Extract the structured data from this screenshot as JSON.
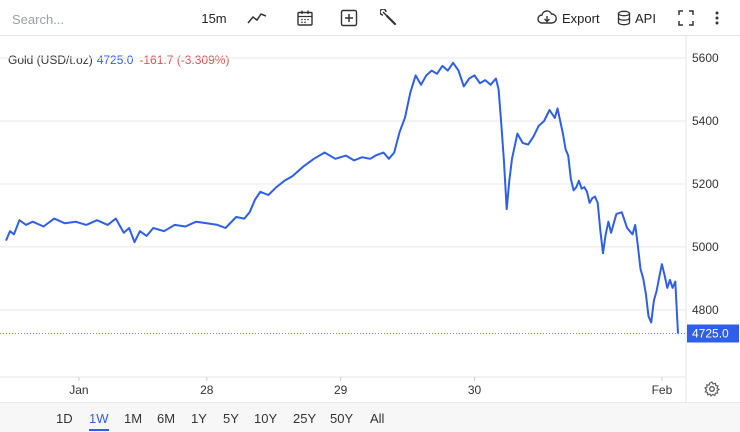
{
  "toolbar": {
    "search_placeholder": "Search...",
    "interval": "15m",
    "export_label": "Export",
    "api_label": "API",
    "icons": [
      "line-chart-icon",
      "calendar-icon",
      "add-indicator-icon",
      "wrench-icon",
      "cloud-download-icon",
      "database-icon",
      "fullscreen-icon",
      "more-vertical-icon"
    ]
  },
  "legend": {
    "symbol": "Gold (USD/t.oz)",
    "price": "4725.0",
    "change": "-161.7 (-3.309%)"
  },
  "colors": {
    "line": "#2f5fe8",
    "negative": "#e05252",
    "grid": "#e8e8e8",
    "price_tag": "#2f5fe8"
  },
  "chart_data": {
    "type": "line",
    "x_tick_labels": [
      "Jan",
      "28",
      "29",
      "30",
      "Feb"
    ],
    "y_tick_labels": [
      "4800",
      "5000",
      "5200",
      "5400",
      "5600"
    ],
    "ylim": [
      4590,
      5670
    ],
    "x_range_days": [
      0,
      4.4
    ],
    "x_ticks_days": [
      0.5,
      1.5,
      2.5,
      3.5,
      4.5
    ],
    "last_value_label": "4725.0",
    "last_value": 4725,
    "series": [
      {
        "values": [
          [
            0.0,
            5020
          ],
          [
            0.03,
            5050
          ],
          [
            0.06,
            5040
          ],
          [
            0.1,
            5085
          ],
          [
            0.15,
            5070
          ],
          [
            0.2,
            5080
          ],
          [
            0.28,
            5065
          ],
          [
            0.36,
            5090
          ],
          [
            0.44,
            5075
          ],
          [
            0.52,
            5080
          ],
          [
            0.6,
            5070
          ],
          [
            0.68,
            5085
          ],
          [
            0.76,
            5070
          ],
          [
            0.82,
            5090
          ],
          [
            0.88,
            5045
          ],
          [
            0.92,
            5060
          ],
          [
            0.96,
            5015
          ],
          [
            1.0,
            5050
          ],
          [
            1.05,
            5035
          ],
          [
            1.1,
            5060
          ],
          [
            1.18,
            5050
          ],
          [
            1.26,
            5070
          ],
          [
            1.34,
            5065
          ],
          [
            1.42,
            5080
          ],
          [
            1.5,
            5075
          ],
          [
            1.58,
            5070
          ],
          [
            1.64,
            5060
          ],
          [
            1.72,
            5095
          ],
          [
            1.78,
            5090
          ],
          [
            1.82,
            5110
          ],
          [
            1.86,
            5150
          ],
          [
            1.9,
            5175
          ],
          [
            1.96,
            5165
          ],
          [
            2.02,
            5190
          ],
          [
            2.08,
            5210
          ],
          [
            2.14,
            5225
          ],
          [
            2.22,
            5255
          ],
          [
            2.3,
            5280
          ],
          [
            2.38,
            5300
          ],
          [
            2.46,
            5280
          ],
          [
            2.54,
            5290
          ],
          [
            2.6,
            5275
          ],
          [
            2.66,
            5285
          ],
          [
            2.72,
            5280
          ],
          [
            2.76,
            5290
          ],
          [
            2.82,
            5300
          ],
          [
            2.86,
            5280
          ],
          [
            2.9,
            5300
          ],
          [
            2.94,
            5365
          ],
          [
            2.98,
            5410
          ],
          [
            3.02,
            5490
          ],
          [
            3.06,
            5545
          ],
          [
            3.1,
            5515
          ],
          [
            3.14,
            5545
          ],
          [
            3.18,
            5560
          ],
          [
            3.22,
            5550
          ],
          [
            3.26,
            5575
          ],
          [
            3.3,
            5560
          ],
          [
            3.34,
            5585
          ],
          [
            3.38,
            5560
          ],
          [
            3.42,
            5510
          ],
          [
            3.46,
            5535
          ],
          [
            3.5,
            5545
          ],
          [
            3.54,
            5520
          ],
          [
            3.58,
            5530
          ],
          [
            3.62,
            5515
          ],
          [
            3.66,
            5535
          ],
          [
            3.68,
            5500
          ],
          [
            3.7,
            5390
          ],
          [
            3.72,
            5270
          ],
          [
            3.74,
            5120
          ],
          [
            3.76,
            5210
          ],
          [
            3.78,
            5280
          ],
          [
            3.82,
            5360
          ],
          [
            3.86,
            5330
          ],
          [
            3.9,
            5325
          ],
          [
            3.94,
            5350
          ],
          [
            3.98,
            5385
          ],
          [
            4.02,
            5400
          ],
          [
            4.06,
            5435
          ],
          [
            4.1,
            5410
          ],
          [
            4.12,
            5440
          ],
          [
            4.14,
            5400
          ],
          [
            4.16,
            5360
          ],
          [
            4.18,
            5310
          ],
          [
            4.2,
            5290
          ],
          [
            4.22,
            5215
          ],
          [
            4.24,
            5180
          ],
          [
            4.26,
            5190
          ],
          [
            4.28,
            5210
          ],
          [
            4.3,
            5185
          ],
          [
            4.32,
            5190
          ],
          [
            4.34,
            5175
          ],
          [
            4.36,
            5140
          ],
          [
            4.38,
            5155
          ],
          [
            4.4,
            5160
          ],
          [
            4.42,
            5140
          ],
          [
            4.44,
            5050
          ],
          [
            4.46,
            4980
          ],
          [
            4.48,
            5040
          ],
          [
            4.5,
            5080
          ],
          [
            4.52,
            5045
          ],
          [
            4.56,
            5105
          ],
          [
            4.6,
            5110
          ],
          [
            4.64,
            5060
          ],
          [
            4.68,
            5040
          ],
          [
            4.7,
            5070
          ],
          [
            4.72,
            5005
          ],
          [
            4.74,
            4930
          ],
          [
            4.76,
            4900
          ],
          [
            4.78,
            4850
          ],
          [
            4.8,
            4780
          ],
          [
            4.82,
            4760
          ],
          [
            4.84,
            4830
          ],
          [
            4.86,
            4860
          ],
          [
            4.88,
            4905
          ],
          [
            4.9,
            4945
          ],
          [
            4.92,
            4910
          ],
          [
            4.94,
            4870
          ],
          [
            4.96,
            4895
          ],
          [
            4.98,
            4870
          ],
          [
            5.0,
            4890
          ],
          [
            5.02,
            4725
          ]
        ]
      }
    ]
  },
  "range_buttons": [
    "1D",
    "1W",
    "1M",
    "6M",
    "1Y",
    "5Y",
    "10Y",
    "25Y",
    "50Y",
    "All"
  ],
  "active_range": "1W"
}
